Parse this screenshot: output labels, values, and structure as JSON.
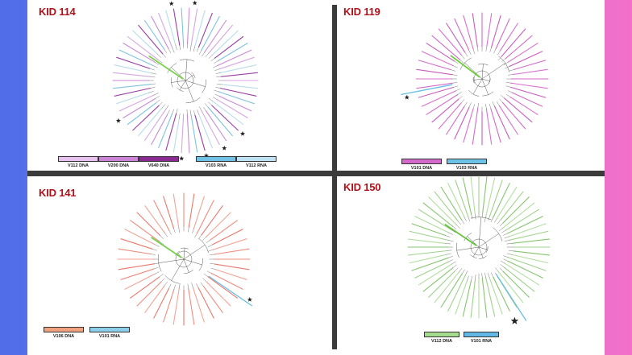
{
  "panels": [
    {
      "title": "KID 114",
      "palette": [
        "#d6a6e0",
        "#b7dde9",
        "#9b3fa6",
        "#7fc3de",
        "#c98ad6"
      ],
      "green": "#7ad24a",
      "stars_count": 7,
      "legend": [
        {
          "label": "V112 DNA",
          "color": "#e9c3ef"
        },
        {
          "label": "V200 DNA",
          "color": "#cc84d6"
        },
        {
          "label": "V640 DNA",
          "color": "#8b2a93"
        },
        {
          "label": "V103 RNA",
          "color": "#6fc2e6"
        },
        {
          "label": "V112 RNA",
          "color": "#bfe3f2"
        }
      ]
    },
    {
      "title": "KID 119",
      "palette": [
        "#d36ac9",
        "#d970cf",
        "#c95bbf"
      ],
      "green": "#6ccc39",
      "stars_count": 1,
      "legend": [
        {
          "label": "V101 DNA",
          "color": "#d36ac9"
        },
        {
          "label": "V103 RNA",
          "color": "#6cc3e6"
        }
      ]
    },
    {
      "title": "KID 141",
      "palette": [
        "#f08b7e",
        "#e9786c",
        "#f3a396"
      ],
      "green": "#76d04a",
      "stars_count": 1,
      "legend": [
        {
          "label": "V106 DNA",
          "color": "#f0a17f"
        },
        {
          "label": "V101 RNA",
          "color": "#8dcfea"
        }
      ]
    },
    {
      "title": "KID 150",
      "palette": [
        "#9fd18b",
        "#86c46f",
        "#b2dca0"
      ],
      "green": "#67c43c",
      "stars_count": 1,
      "legend": [
        {
          "label": "V112 DNA",
          "color": "#a6dc8e"
        },
        {
          "label": "V101 RNA",
          "color": "#62b9e6"
        }
      ]
    }
  ]
}
